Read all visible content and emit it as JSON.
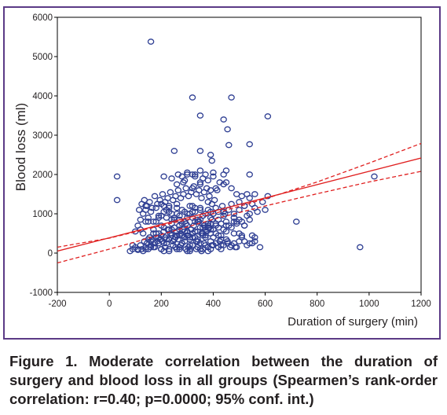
{
  "caption": "Figure 1. Moderate correlation between the duration of surgery and blood loss in all groups (Spearmen’s rank-order correlation: r=0.40; p=0.0000; 95% conf. int.)",
  "chart_data": {
    "type": "scatter",
    "title": "",
    "xlabel": "Duration of surgery (min)",
    "ylabel": "Blood loss (ml)",
    "xlim": [
      -200,
      1200
    ],
    "ylim": [
      -1000,
      6000
    ],
    "xticks": [
      "-200",
      "0",
      "200",
      "400",
      "600",
      "800",
      "1000",
      "1200"
    ],
    "yticks": [
      "-1000",
      "0",
      "1000",
      "2000",
      "3000",
      "4000",
      "5000",
      "6000"
    ],
    "grid": false,
    "legend": "none",
    "colors": {
      "points": "#2f3f93",
      "fit": "#e02020",
      "frame": "#5b3a86",
      "axes": "#000000"
    },
    "fit_line": {
      "x": [
        -200,
        1200
      ],
      "y": [
        50,
        2420
      ]
    },
    "confidence_upper": {
      "x": [
        -200,
        0,
        200,
        400,
        600,
        800,
        1000,
        1200
      ],
      "y": [
        150,
        380,
        700,
        1000,
        1380,
        1810,
        2290,
        2790
      ]
    },
    "confidence_lower": {
      "x": [
        -200,
        0,
        200,
        400,
        600,
        800,
        1000,
        1200
      ],
      "y": [
        -250,
        100,
        470,
        860,
        1200,
        1510,
        1810,
        2080
      ]
    },
    "points": {
      "x": [
        160,
        320,
        470,
        440,
        350,
        610,
        455,
        350,
        460,
        540,
        330,
        250,
        265,
        390,
        395,
        540,
        590,
        720,
        965,
        1020,
        30,
        30,
        140,
        90,
        110,
        140,
        175,
        200,
        210,
        230,
        245,
        255,
        260,
        270,
        280,
        295,
        300,
        310,
        320,
        335,
        340,
        355,
        360,
        370,
        380,
        390,
        400,
        410,
        420,
        430,
        440,
        455,
        465,
        470,
        480,
        490,
        500,
        510,
        520,
        530,
        540,
        550,
        560,
        580,
        600,
        610,
        285,
        300,
        330,
        350,
        370,
        390,
        450,
        470,
        490,
        510,
        520,
        530,
        540,
        550,
        560,
        560,
        570,
        480,
        490,
        500,
        520,
        540,
        80,
        90,
        100,
        110,
        120,
        125,
        130,
        135,
        140,
        145,
        150,
        155,
        160,
        165,
        170,
        175,
        180,
        185,
        190,
        195,
        200,
        205,
        210,
        215,
        220,
        225,
        230,
        235,
        240,
        245,
        250,
        255,
        260,
        265,
        270,
        275,
        280,
        285,
        290,
        295,
        300,
        305,
        310,
        315,
        320,
        325,
        330,
        340,
        345,
        350,
        355,
        360,
        365,
        370,
        375,
        380,
        385,
        390,
        395,
        400,
        410,
        420,
        430,
        440,
        450,
        460,
        470,
        480,
        490,
        500,
        510,
        520,
        530,
        540,
        550,
        560,
        100,
        110,
        120,
        130,
        140,
        150,
        160,
        170,
        180,
        190,
        200,
        210,
        220,
        230,
        240,
        250,
        260,
        270,
        280,
        290,
        300,
        310,
        320,
        330,
        340,
        350,
        360,
        370,
        380,
        390,
        400,
        420,
        440,
        460,
        480,
        500,
        520,
        115,
        125,
        135,
        145,
        155,
        165,
        175,
        185,
        195,
        205,
        215,
        225,
        235,
        245,
        255,
        265,
        275,
        285,
        295,
        305,
        315,
        325,
        335,
        345,
        355,
        365,
        375,
        385,
        395,
        405,
        415,
        425,
        435,
        445,
        130,
        150,
        170,
        190,
        210,
        230,
        250,
        270,
        290,
        310,
        330,
        350,
        370,
        390,
        410,
        430,
        120,
        140,
        160,
        180,
        200,
        220,
        240,
        260,
        280,
        300,
        320,
        340,
        360,
        380,
        400,
        150,
        170,
        190,
        210,
        230,
        250,
        270,
        290,
        310,
        330,
        350,
        370,
        390,
        410,
        430,
        450,
        180,
        200,
        220,
        240,
        260,
        280,
        300,
        320,
        340,
        360,
        380,
        400,
        160,
        190,
        215,
        245,
        275,
        305,
        335,
        365,
        395,
        425,
        455,
        485,
        210,
        240,
        270,
        300,
        330,
        360,
        390,
        420,
        450,
        480,
        230,
        260,
        290,
        320,
        350,
        380,
        410,
        440,
        470,
        500,
        240,
        270,
        300,
        330,
        360,
        390,
        420,
        450,
        480,
        510,
        260,
        290,
        320,
        350,
        380,
        410,
        440,
        250,
        280,
        310,
        340,
        370,
        400,
        430,
        200,
        230,
        270,
        310,
        350,
        380,
        300,
        350,
        400,
        450,
        210,
        240,
        280,
        320,
        360,
        400,
        440
      ],
      "y": [
        5380,
        3960,
        3960,
        3400,
        3500,
        3480,
        3150,
        2600,
        2750,
        2770,
        2000,
        2600,
        2000,
        2500,
        2350,
        2000,
        1300,
        800,
        150,
        1950,
        1950,
        1350,
        1200,
        200,
        100,
        100,
        150,
        100,
        50,
        100,
        200,
        150,
        100,
        150,
        250,
        100,
        50,
        100,
        200,
        100,
        150,
        50,
        100,
        200,
        150,
        100,
        200,
        250,
        150,
        100,
        200,
        300,
        150,
        200,
        250,
        150,
        300,
        400,
        300,
        200,
        250,
        450,
        300,
        150,
        1100,
        1450,
        1800,
        2000,
        1950,
        1800,
        2000,
        1600,
        1800,
        1650,
        1500,
        1450,
        1200,
        1500,
        1400,
        1250,
        1500,
        1150,
        1050,
        900,
        800,
        500,
        700,
        1000,
        50,
        100,
        150,
        80,
        200,
        100,
        50,
        300,
        150,
        250,
        100,
        400,
        200,
        350,
        150,
        250,
        400,
        300,
        500,
        350,
        450,
        300,
        550,
        400,
        250,
        600,
        350,
        500,
        450,
        300,
        650,
        400,
        550,
        350,
        700,
        500,
        450,
        600,
        400,
        750,
        550,
        450,
        350,
        600,
        500,
        700,
        400,
        550,
        800,
        650,
        500,
        450,
        700,
        600,
        550,
        750,
        650,
        500,
        850,
        600,
        700,
        650,
        750,
        600,
        800,
        700,
        650,
        900,
        750,
        850,
        800,
        700,
        950,
        850,
        250,
        400,
        550,
        700,
        850,
        1000,
        1100,
        900,
        1050,
        800,
        1150,
        950,
        1250,
        1050,
        900,
        1200,
        1000,
        850,
        1150,
        950,
        1100,
        800,
        1000,
        1200,
        900,
        1050,
        850,
        1150,
        950,
        1000,
        1100,
        900,
        1000,
        1050,
        950,
        1100,
        1000,
        1300,
        1200,
        1100,
        1250,
        1350,
        1200,
        1300,
        1150,
        1450,
        1250,
        1350,
        1500,
        1300,
        1400,
        1550,
        1350,
        1450,
        1600,
        1400,
        1500,
        1650,
        1450,
        1550,
        1700,
        1500,
        1600,
        1400,
        1550,
        1650,
        1450,
        1250,
        1350,
        1600,
        1800,
        1200,
        1000,
        500,
        800,
        600,
        900,
        1200,
        1050,
        900,
        700,
        550,
        1000,
        1150,
        850,
        650,
        1050,
        750,
        450,
        600,
        800,
        300,
        500,
        700,
        350,
        600,
        450,
        250,
        550,
        400,
        300,
        500,
        650,
        200,
        350,
        500,
        400,
        250,
        600,
        350,
        450,
        300,
        200,
        550,
        250,
        400,
        300,
        500,
        200,
        350,
        800,
        950,
        1100,
        850,
        1000,
        750,
        900,
        1050,
        800,
        950,
        700,
        1000,
        150,
        250,
        150,
        300,
        200,
        150,
        300,
        250,
        200,
        300,
        250,
        150,
        650,
        750,
        850,
        700,
        800,
        650,
        750,
        850,
        700,
        800,
        1150,
        1250,
        1050,
        1200,
        1100,
        1300,
        1150,
        1050,
        1250,
        1100,
        500,
        600,
        450,
        550,
        500,
        600,
        450,
        550,
        500,
        450,
        1750,
        1850,
        1650,
        1750,
        1850,
        1650,
        1750,
        350,
        450,
        400,
        350,
        450,
        400,
        350,
        100,
        50,
        100,
        50,
        100,
        50,
        2050,
        2100,
        2050,
        2100,
        1950,
        1900,
        1950,
        2000,
        1900,
        1950,
        2000
      ]
    }
  }
}
